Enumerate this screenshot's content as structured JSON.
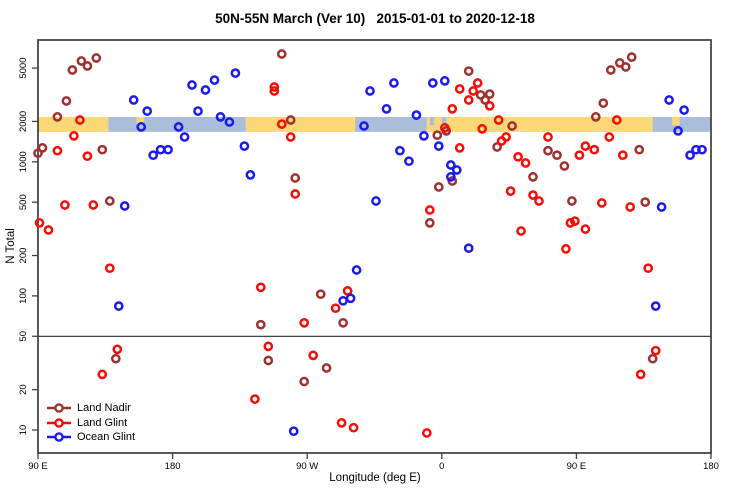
{
  "title": "50N-55N March (Ver 10)   2015-01-01 to 2020-12-18",
  "legend": [
    {
      "label": "Land Nadir",
      "color": "#A02F2F"
    },
    {
      "label": "Land Glint",
      "color": "#F90B06"
    },
    {
      "label": "Ocean Glint",
      "color": "#1A1AEE"
    }
  ],
  "chart_data": {
    "type": "scatter",
    "title": "50N-55N March (Ver 10)   2015-01-01 to 2020-12-18",
    "xlabel": "Longitude (deg E)",
    "ylabel": "N Total",
    "x_axis_range": [
      90,
      540
    ],
    "x_ticks": [
      {
        "value": 90,
        "label": "90 E"
      },
      {
        "value": 180,
        "label": "180"
      },
      {
        "value": 270,
        "label": "90 W"
      },
      {
        "value": 360,
        "label": "0"
      },
      {
        "value": 450,
        "label": "90 E"
      },
      {
        "value": 540,
        "label": "180"
      }
    ],
    "y_scale": "log",
    "ylim": [
      7,
      8100
    ],
    "y_ticks": [
      10,
      20,
      50,
      100,
      200,
      500,
      1000,
      2000,
      5000
    ],
    "reference_line_y": 50,
    "surface_band": {
      "value_top": 2160,
      "value_bottom": 1670,
      "land_color": "#FAD878",
      "ocean_color": "#AABEDC",
      "segments": [
        {
          "surface": "land",
          "from": 90,
          "to": 137
        },
        {
          "surface": "ocean",
          "from": 137,
          "to": 229
        },
        {
          "surface": "land",
          "from": 229,
          "to": 302
        },
        {
          "surface": "ocean",
          "from": 302,
          "to": 350
        },
        {
          "surface": "land",
          "from": 350,
          "to": 501
        },
        {
          "surface": "ocean",
          "from": 501,
          "to": 540
        }
      ],
      "details": [
        {
          "surface": "land",
          "from": 156,
          "to": 161,
          "part": "top"
        },
        {
          "surface": "ocean",
          "from": 352,
          "to": 355,
          "part": "top"
        },
        {
          "surface": "ocean",
          "from": 360,
          "to": 363,
          "part": "top"
        },
        {
          "surface": "land",
          "from": 514,
          "to": 519,
          "part": "top"
        }
      ]
    },
    "series": [
      {
        "name": "Land Nadir",
        "color": "#A02F2F",
        "points": [
          [
            113,
            4840
          ],
          [
            119,
            5650
          ],
          [
            123,
            5180
          ],
          [
            129,
            5940
          ],
          [
            109,
            2840
          ],
          [
            103,
            2160
          ],
          [
            93,
            1270
          ],
          [
            90,
            1160
          ],
          [
            133,
            1230
          ],
          [
            138,
            510
          ],
          [
            253,
            6370
          ],
          [
            259,
            2050
          ],
          [
            262,
            757
          ],
          [
            279,
            103
          ],
          [
            239,
            61
          ],
          [
            294,
            63
          ],
          [
            244,
            33
          ],
          [
            283,
            29
          ],
          [
            268,
            23
          ],
          [
            142,
            34
          ],
          [
            378,
            4750
          ],
          [
            386,
            3150
          ],
          [
            392,
            3200
          ],
          [
            389,
            2890
          ],
          [
            407,
            1850
          ],
          [
            357,
            1580
          ],
          [
            363,
            1700
          ],
          [
            397,
            1290
          ],
          [
            367,
            719
          ],
          [
            358,
            649
          ],
          [
            421,
            771
          ],
          [
            352,
            350
          ],
          [
            473,
            4840
          ],
          [
            479,
            5460
          ],
          [
            483,
            5090
          ],
          [
            487,
            6040
          ],
          [
            468,
            2740
          ],
          [
            463,
            2160
          ],
          [
            431,
            1210
          ],
          [
            437,
            1120
          ],
          [
            442,
            931
          ],
          [
            492,
            1230
          ],
          [
            447,
            510
          ],
          [
            496,
            501
          ],
          [
            501,
            34
          ]
        ]
      },
      {
        "name": "Land Glint",
        "color": "#F90B06",
        "points": [
          [
            118,
            2050
          ],
          [
            114,
            1560
          ],
          [
            103,
            1210
          ],
          [
            123,
            1100
          ],
          [
            108,
            476
          ],
          [
            127,
            476
          ],
          [
            91,
            350
          ],
          [
            97,
            310
          ],
          [
            138,
            161
          ],
          [
            143,
            40
          ],
          [
            133,
            26
          ],
          [
            248,
            3610
          ],
          [
            248,
            3370
          ],
          [
            253,
            1910
          ],
          [
            259,
            1530
          ],
          [
            262,
            575
          ],
          [
            239,
            116
          ],
          [
            297,
            109
          ],
          [
            289,
            81
          ],
          [
            268,
            63
          ],
          [
            244,
            42
          ],
          [
            274,
            36
          ],
          [
            235,
            17
          ],
          [
            293,
            11.3
          ],
          [
            301,
            10.4
          ],
          [
            372,
            3490
          ],
          [
            384,
            3870
          ],
          [
            381,
            3370
          ],
          [
            378,
            2890
          ],
          [
            392,
            2610
          ],
          [
            367,
            2480
          ],
          [
            398,
            2050
          ],
          [
            362,
            1790
          ],
          [
            387,
            1760
          ],
          [
            403,
            1530
          ],
          [
            372,
            1270
          ],
          [
            400,
            1430
          ],
          [
            411,
            1090
          ],
          [
            416,
            980
          ],
          [
            406,
            605
          ],
          [
            421,
            565
          ],
          [
            425,
            510
          ],
          [
            352,
            437
          ],
          [
            413,
            305
          ],
          [
            431,
            1530
          ],
          [
            350,
            9.5
          ],
          [
            477,
            2050
          ],
          [
            472,
            1530
          ],
          [
            452,
            1120
          ],
          [
            456,
            1310
          ],
          [
            462,
            1230
          ],
          [
            481,
            1120
          ],
          [
            467,
            493
          ],
          [
            486,
            460
          ],
          [
            446,
            350
          ],
          [
            449,
            361
          ],
          [
            456,
            315
          ],
          [
            443,
            224
          ],
          [
            498,
            161
          ],
          [
            503,
            39
          ],
          [
            493,
            26
          ]
        ]
      },
      {
        "name": "Ocean Glint",
        "color": "#1A1AEE",
        "points": [
          [
            193,
            3740
          ],
          [
            202,
            3430
          ],
          [
            154,
            2890
          ],
          [
            163,
            2390
          ],
          [
            197,
            2390
          ],
          [
            159,
            1820
          ],
          [
            184,
            1820
          ],
          [
            188,
            1530
          ],
          [
            167,
            1120
          ],
          [
            172,
            1230
          ],
          [
            177,
            1230
          ],
          [
            148,
            468
          ],
          [
            144,
            84
          ],
          [
            222,
            4590
          ],
          [
            208,
            4070
          ],
          [
            212,
            2160
          ],
          [
            218,
            1980
          ],
          [
            308,
            1850
          ],
          [
            228,
            1310
          ],
          [
            232,
            798
          ],
          [
            316,
            510
          ],
          [
            312,
            3370
          ],
          [
            303,
            156
          ],
          [
            294,
            92
          ],
          [
            299,
            96
          ],
          [
            261,
            9.8
          ],
          [
            328,
            3870
          ],
          [
            354,
            3870
          ],
          [
            362,
            4010
          ],
          [
            323,
            2480
          ],
          [
            343,
            2230
          ],
          [
            348,
            1560
          ],
          [
            358,
            1310
          ],
          [
            332,
            1210
          ],
          [
            338,
            1010
          ],
          [
            366,
            947
          ],
          [
            370,
            869
          ],
          [
            366,
            771
          ],
          [
            378,
            227
          ],
          [
            512,
            2890
          ],
          [
            522,
            2430
          ],
          [
            518,
            1700
          ],
          [
            526,
            1120
          ],
          [
            530,
            1230
          ],
          [
            534,
            1230
          ],
          [
            507,
            460
          ],
          [
            503,
            84
          ]
        ]
      }
    ]
  }
}
